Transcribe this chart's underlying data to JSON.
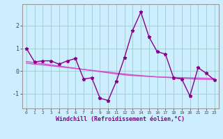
{
  "x": [
    0,
    1,
    2,
    3,
    4,
    5,
    6,
    7,
    8,
    9,
    10,
    11,
    12,
    13,
    14,
    15,
    16,
    17,
    18,
    19,
    20,
    21,
    22,
    23
  ],
  "y_main": [
    1.0,
    0.4,
    0.45,
    0.45,
    0.3,
    0.45,
    0.55,
    -0.35,
    -0.3,
    -1.2,
    -1.3,
    -0.45,
    0.6,
    1.8,
    2.6,
    1.5,
    0.85,
    0.75,
    -0.3,
    -0.35,
    -1.1,
    0.15,
    -0.1,
    -0.4
  ],
  "y_smooth1": [
    0.35,
    0.3,
    0.27,
    0.23,
    0.19,
    0.15,
    0.11,
    0.07,
    0.03,
    -0.01,
    -0.05,
    -0.09,
    -0.13,
    -0.17,
    -0.2,
    -0.23,
    -0.26,
    -0.28,
    -0.3,
    -0.32,
    -0.34,
    -0.36,
    -0.37,
    -0.38
  ],
  "y_smooth2": [
    0.42,
    0.37,
    0.32,
    0.27,
    0.22,
    0.17,
    0.12,
    0.07,
    0.02,
    -0.03,
    -0.08,
    -0.13,
    -0.17,
    -0.2,
    -0.22,
    -0.24,
    -0.26,
    -0.27,
    -0.28,
    -0.29,
    -0.3,
    -0.31,
    -0.32,
    -0.33
  ],
  "color_main": "#880088",
  "color_smooth": "#cc55cc",
  "bg_color": "#cceeff",
  "grid_color": "#99cccc",
  "xlabel": "Windchill (Refroidissement éolien,°C)",
  "yticks": [
    -1,
    0,
    1,
    2
  ],
  "xticks": [
    0,
    1,
    2,
    3,
    4,
    5,
    6,
    7,
    8,
    9,
    10,
    11,
    12,
    13,
    14,
    15,
    16,
    17,
    18,
    19,
    20,
    21,
    22,
    23
  ],
  "xlim": [
    -0.5,
    23.5
  ],
  "ylim": [
    -1.65,
    2.95
  ]
}
